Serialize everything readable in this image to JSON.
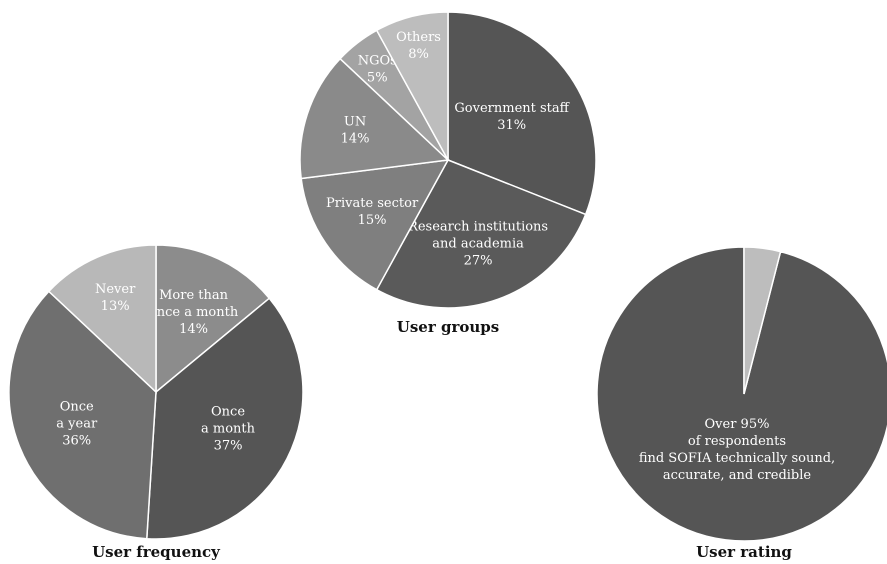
{
  "chart_data": [
    {
      "type": "pie",
      "title": "User groups",
      "slices": [
        {
          "label": "Government staff",
          "value_label": "31%",
          "value": 31,
          "color": "#555555"
        },
        {
          "label": "Research institutions and academia",
          "value_label": "27%",
          "value": 27,
          "color": "#5a5a5a"
        },
        {
          "label": "Private sector",
          "value_label": "15%",
          "value": 15,
          "color": "#7f7f7f"
        },
        {
          "label": "UN",
          "value_label": "14%",
          "value": 14,
          "color": "#8a8a8a"
        },
        {
          "label": "NGOs",
          "value_label": "5%",
          "value": 5,
          "color": "#a3a3a3"
        },
        {
          "label": "Others",
          "value_label": "8%",
          "value": 8,
          "color": "#bdbdbd"
        }
      ]
    },
    {
      "type": "pie",
      "title": "User frequency",
      "slices": [
        {
          "label": "More than once a month",
          "value_label": "14%",
          "value": 14,
          "color": "#8c8c8c"
        },
        {
          "label": "Once a month",
          "value_label": "37%",
          "value": 37,
          "color": "#555555"
        },
        {
          "label": "Once a year",
          "value_label": "36%",
          "value": 36,
          "color": "#6f6f6f"
        },
        {
          "label": "Never",
          "value_label": "13%",
          "value": 13,
          "color": "#b8b8b8"
        }
      ]
    },
    {
      "type": "pie",
      "title": "User rating",
      "slices": [
        {
          "label": "Over 95% of respondents find SOFIA technically sound, accurate, and credible",
          "value_label": "",
          "value": 96,
          "color": "#555555"
        },
        {
          "label": "",
          "value_label": "",
          "value": 4,
          "color": "#bdbdbd"
        }
      ]
    }
  ],
  "text": {
    "groups": {
      "title": "User groups",
      "slices": [
        [
          "Government staff",
          "31%"
        ],
        [
          "Research institutions",
          "and academia",
          "27%"
        ],
        [
          "Private sector",
          "15%"
        ],
        [
          "UN",
          "14%"
        ],
        [
          "NGOs",
          "5%"
        ],
        [
          "Others",
          "8%"
        ]
      ]
    },
    "frequency": {
      "title": "User frequency",
      "slices": [
        [
          "More than",
          "once a month",
          "14%"
        ],
        [
          "Once",
          "a month",
          "37%"
        ],
        [
          "Once",
          "a year",
          "36%"
        ],
        [
          "Never",
          "13%"
        ]
      ]
    },
    "rating": {
      "title": "User rating",
      "slices": [
        [
          "Over 95%",
          "of respondents",
          "find SOFIA technically sound,",
          "accurate, and credible"
        ],
        []
      ]
    }
  }
}
